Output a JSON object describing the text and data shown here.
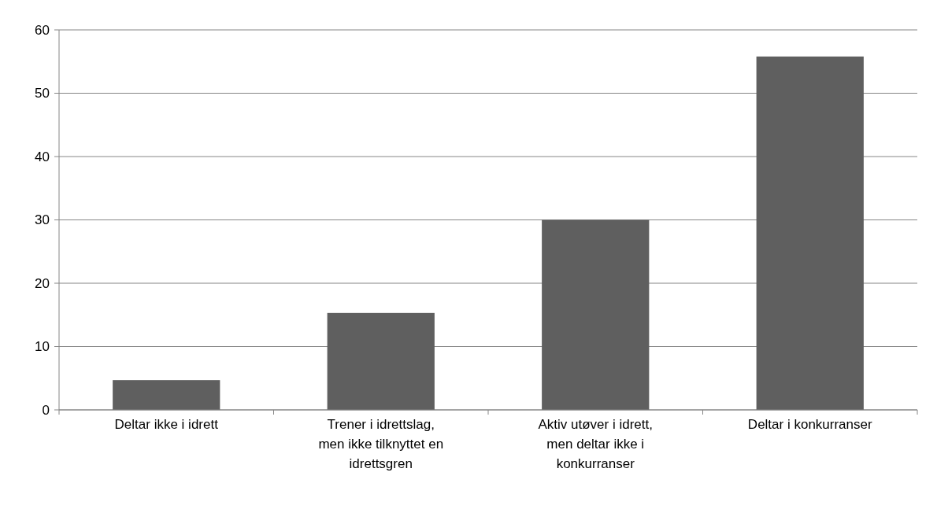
{
  "chart_data": {
    "type": "bar",
    "categories": [
      "Deltar ikke i idrett",
      "Trener i idrettslag, men ikke tilknyttet en idrettsgren",
      "Aktiv utøver i idrett, men deltar ikke i konkurranser",
      "Deltar i konkurranser"
    ],
    "values": [
      4.7,
      15.3,
      30,
      55.8
    ],
    "color": "#5f5f5f",
    "ylim": [
      0,
      60
    ],
    "yticks": [
      0,
      10,
      20,
      30,
      40,
      50,
      60
    ],
    "grid": "y"
  }
}
